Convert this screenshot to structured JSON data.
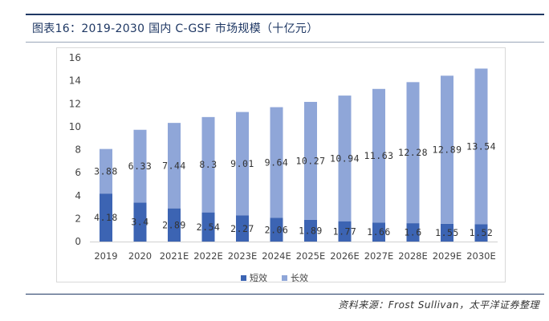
{
  "title": "图表16：2019-2030 国内 C-GSF 市场规模（十亿元）",
  "source": "资料来源：Frost Sullivan，太平洋证券整理",
  "colors": {
    "short": "#3c64b3",
    "long": "#8fa6d8",
    "rule": "#1f3864"
  },
  "chart_data": {
    "type": "bar",
    "stacked": true,
    "title": "2019-2030 国内 C-GSF 市场规模（十亿元）",
    "xlabel": "",
    "ylabel": "",
    "categories": [
      "2019",
      "2020",
      "2021E",
      "2022E",
      "2023E",
      "2024E",
      "2025E",
      "2026E",
      "2027E",
      "2028E",
      "2029E",
      "2030E"
    ],
    "ylim": [
      0,
      16
    ],
    "yticks": [
      0,
      2,
      4,
      6,
      8,
      10,
      12,
      14,
      16
    ],
    "grid": false,
    "legend_position": "bottom",
    "series": [
      {
        "name": "短效",
        "values": [
          4.18,
          3.4,
          2.89,
          2.54,
          2.27,
          2.06,
          1.89,
          1.77,
          1.66,
          1.6,
          1.55,
          1.52
        ],
        "labels": [
          "4.18",
          "3.4",
          "2.89",
          "2.54",
          "2.27",
          "2.06",
          "1.89",
          "1.77",
          "1.66",
          "1.6",
          "1.55",
          "1.52"
        ]
      },
      {
        "name": "长效",
        "values": [
          3.88,
          6.33,
          7.44,
          8.3,
          9.01,
          9.64,
          10.27,
          10.94,
          11.63,
          12.28,
          12.89,
          13.54
        ],
        "labels": [
          "3.88",
          "6.33",
          "7.44",
          "8.3",
          "9.01",
          "9.64",
          "10.27",
          "10.94",
          "11.63",
          "12.28",
          "12.89",
          "13.54"
        ]
      }
    ]
  }
}
